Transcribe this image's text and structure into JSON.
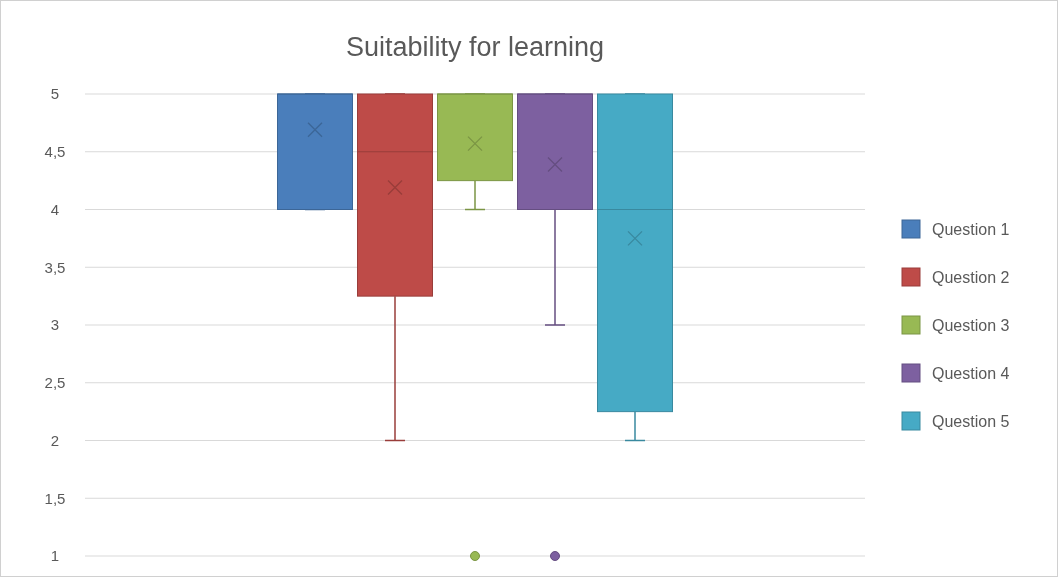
{
  "chart_data": {
    "type": "box",
    "title": "Suitability for learning",
    "categories": [
      null
    ],
    "series": [
      {
        "name": "Question 1",
        "color": "#4a7ebb",
        "boxes": [
          {
            "low": 4,
            "q1": 4,
            "median": 5,
            "q3": 5,
            "high": 5,
            "mean": 4.69
          }
        ]
      },
      {
        "name": "Question 2",
        "color": "#be4b48",
        "boxes": [
          {
            "low": 2,
            "q1": 3.25,
            "median": 4.5,
            "q3": 5,
            "high": 5,
            "mean": 4.19
          }
        ]
      },
      {
        "name": "Question 3",
        "color": "#98b954",
        "boxes": [
          {
            "low": 4,
            "q1": 4.25,
            "median": 5,
            "q3": 5,
            "high": 5,
            "mean": 4.57,
            "outliers": [
              1
            ]
          }
        ]
      },
      {
        "name": "Question 4",
        "color": "#7d60a0",
        "boxes": [
          {
            "low": 3,
            "q1": 4,
            "median": 5,
            "q3": 5,
            "high": 5,
            "mean": 4.39,
            "outliers": [
              1
            ]
          }
        ]
      },
      {
        "name": "Question 5",
        "color": "#46aac5",
        "boxes": [
          {
            "low": 2,
            "q1": 2.25,
            "median": 4,
            "q3": 5,
            "high": 5,
            "mean": 3.75
          }
        ]
      }
    ],
    "ylim": [
      1,
      5
    ],
    "yticks": [
      1,
      {
        "value": 1.5,
        "label": "1,5"
      },
      2,
      {
        "value": 2.5,
        "label": "2,5"
      },
      3,
      {
        "value": 3.5,
        "label": "3,5"
      },
      4,
      {
        "value": 4.5,
        "label": "4,5"
      },
      5
    ],
    "grid": "y",
    "legend": "right"
  }
}
